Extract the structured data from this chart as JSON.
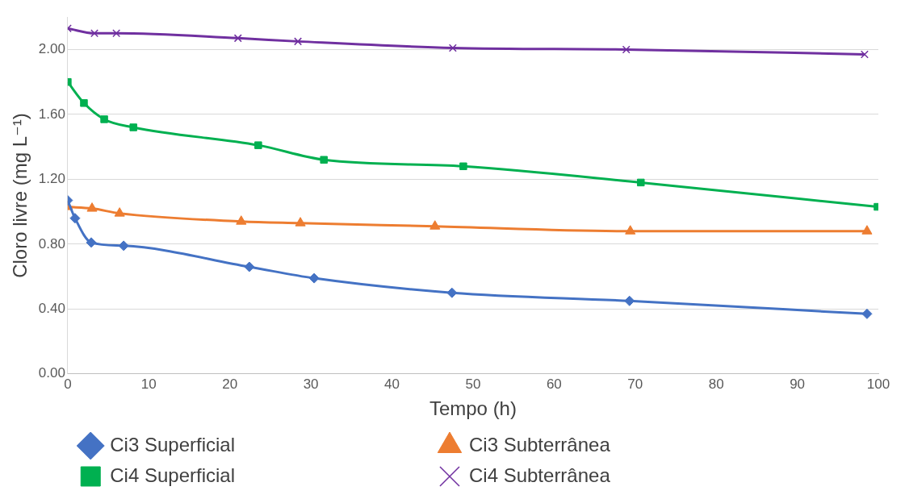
{
  "chart_data": {
    "type": "line",
    "xlabel": "Tempo (h)",
    "ylabel": "Cloro livre (mg L⁻¹)",
    "xlim": [
      0,
      100
    ],
    "xticks": [
      0,
      10,
      20,
      30,
      40,
      50,
      60,
      70,
      80,
      90,
      100
    ],
    "ylim": [
      0,
      2.2
    ],
    "yticks": [
      {
        "value": 0,
        "label": "0.00"
      },
      {
        "value": 0.4,
        "label": "0.40"
      },
      {
        "value": 0.8,
        "label": "0.80"
      },
      {
        "value": 1.2,
        "label": "1.20"
      },
      {
        "value": 1.6,
        "label": "1.60"
      },
      {
        "value": 2.0,
        "label": "2.00"
      }
    ],
    "grid": "y",
    "legend": "bottom",
    "line_style": "solid",
    "series": [
      {
        "name": "Ci3 Superficial",
        "color": "#4472c4",
        "marker": "diamond",
        "x": [
          0,
          0.9,
          2.9,
          6.9,
          22.4,
          30.4,
          47.4,
          69.3,
          98.6
        ],
        "values": [
          1.07,
          0.96,
          0.81,
          0.79,
          0.66,
          0.59,
          0.5,
          0.45,
          0.37
        ]
      },
      {
        "name": "Ci3 Subterrânea",
        "color": "#ed7d31",
        "marker": "triangle",
        "x": [
          0,
          3.0,
          6.4,
          21.4,
          28.7,
          45.3,
          69.4,
          98.6
        ],
        "values": [
          1.03,
          1.02,
          0.99,
          0.94,
          0.93,
          0.91,
          0.88,
          0.88
        ]
      },
      {
        "name": "Ci4 Superficial",
        "color": "#00b050",
        "marker": "square",
        "x": [
          0,
          2.0,
          4.5,
          8.1,
          23.5,
          31.6,
          48.8,
          70.7,
          99.9
        ],
        "values": [
          1.8,
          1.67,
          1.57,
          1.52,
          1.41,
          1.32,
          1.28,
          1.18,
          1.03
        ]
      },
      {
        "name": "Ci4 Subterrânea",
        "color": "#7030a0",
        "marker": "cross",
        "x": [
          0,
          3.3,
          6.0,
          21.0,
          28.4,
          47.5,
          68.9,
          98.3
        ],
        "values": [
          2.13,
          2.1,
          2.1,
          2.07,
          2.05,
          2.01,
          2.0,
          1.97
        ]
      }
    ]
  }
}
